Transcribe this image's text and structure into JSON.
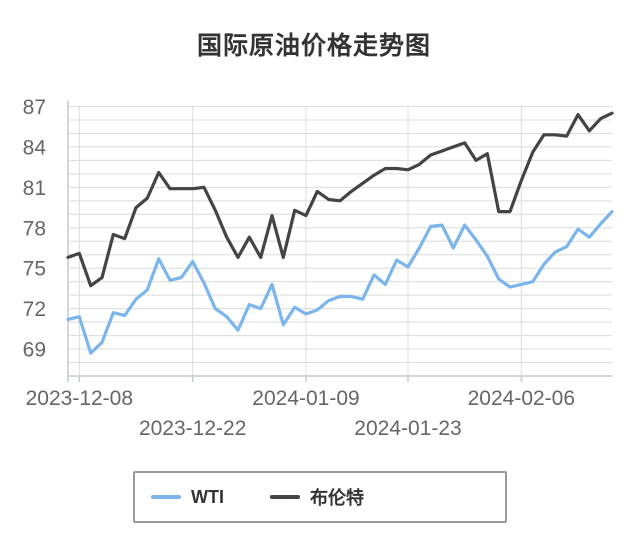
{
  "title": "国际原油价格走势图",
  "chart_data": {
    "type": "line",
    "title": "国际原油价格走势图",
    "ylim": [
      67,
      87
    ],
    "y_ticks": [
      69,
      72,
      75,
      78,
      81,
      84,
      87
    ],
    "grid": true,
    "legend_position": "bottom",
    "x_ticks": [
      {
        "label": "2023-12-08",
        "pos": 1,
        "row": 1
      },
      {
        "label": "2023-12-22",
        "pos": 11,
        "row": 2
      },
      {
        "label": "2024-01-09",
        "pos": 21,
        "row": 1
      },
      {
        "label": "2024-01-23",
        "pos": 30,
        "row": 2
      },
      {
        "label": "2024-02-06",
        "pos": 40,
        "row": 1
      }
    ],
    "series": [
      {
        "name": "WTI",
        "color": "#7cb5ec",
        "values": [
          71.2,
          71.4,
          68.7,
          69.5,
          71.7,
          71.5,
          72.7,
          73.4,
          75.7,
          74.1,
          74.3,
          75.5,
          73.9,
          72.0,
          71.4,
          70.4,
          72.3,
          72.0,
          73.8,
          70.8,
          72.1,
          71.6,
          71.9,
          72.6,
          72.9,
          72.9,
          72.7,
          74.5,
          73.8,
          75.6,
          75.1,
          76.5,
          78.1,
          78.2,
          76.5,
          78.2,
          77.1,
          75.9,
          74.2,
          73.6,
          73.8,
          74.0,
          75.3,
          76.2,
          76.6,
          77.9,
          77.3,
          78.3,
          79.2
        ]
      },
      {
        "name": "布伦特",
        "color": "#434348",
        "values": [
          75.8,
          76.1,
          73.7,
          74.3,
          77.5,
          77.2,
          79.5,
          80.2,
          82.1,
          80.9,
          80.9,
          80.9,
          81.0,
          79.3,
          77.3,
          75.8,
          77.3,
          75.8,
          78.9,
          75.8,
          79.3,
          78.9,
          80.7,
          80.1,
          80.0,
          80.7,
          81.3,
          81.9,
          82.4,
          82.4,
          82.3,
          82.7,
          83.4,
          83.7,
          84.0,
          84.3,
          83.0,
          83.5,
          79.2,
          79.2,
          81.5,
          83.6,
          84.9,
          84.9,
          84.8,
          86.4,
          85.2,
          86.1,
          86.5
        ]
      }
    ]
  },
  "colors": {
    "grid_line": "#dcdcdc",
    "axis_line": "#c4cad4",
    "axis_label": "#666666",
    "title_text": "#333333",
    "legend_border": "#9b9b9b"
  }
}
